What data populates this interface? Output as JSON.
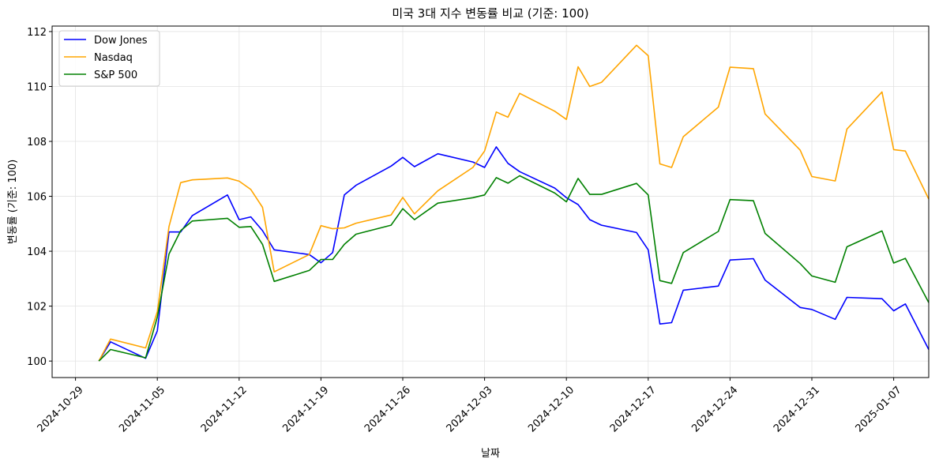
{
  "chart_data": {
    "type": "line",
    "title": "미국 3대 지수 변동률 비교 (기준: 100)",
    "xlabel": "날짜",
    "ylabel": "변동률 (기준: 100)",
    "ylim": [
      99.4,
      112.2
    ],
    "yticks": [
      100,
      102,
      104,
      106,
      108,
      110,
      112
    ],
    "xlim_days": [
      -2.0,
      73.0
    ],
    "xticks": [
      {
        "label": "2024-10-29",
        "day": 0
      },
      {
        "label": "2024-11-05",
        "day": 7
      },
      {
        "label": "2024-11-12",
        "day": 14
      },
      {
        "label": "2024-11-19",
        "day": 21
      },
      {
        "label": "2024-11-26",
        "day": 28
      },
      {
        "label": "2024-12-03",
        "day": 35
      },
      {
        "label": "2024-12-10",
        "day": 42
      },
      {
        "label": "2024-12-17",
        "day": 49
      },
      {
        "label": "2024-12-24",
        "day": 56
      },
      {
        "label": "2024-12-31",
        "day": 63
      },
      {
        "label": "2025-01-07",
        "day": 70
      }
    ],
    "grid": true,
    "legend_position": "top-left",
    "x": [
      "2024-10-31",
      "2024-11-01",
      "2024-11-04",
      "2024-11-05",
      "2024-11-06",
      "2024-11-07",
      "2024-11-08",
      "2024-11-11",
      "2024-11-12",
      "2024-11-13",
      "2024-11-14",
      "2024-11-15",
      "2024-11-18",
      "2024-11-19",
      "2024-11-20",
      "2024-11-21",
      "2024-11-22",
      "2024-11-25",
      "2024-11-26",
      "2024-11-27",
      "2024-11-29",
      "2024-12-02",
      "2024-12-03",
      "2024-12-04",
      "2024-12-05",
      "2024-12-06",
      "2024-12-09",
      "2024-12-10",
      "2024-12-11",
      "2024-12-12",
      "2024-12-13",
      "2024-12-16",
      "2024-12-17",
      "2024-12-18",
      "2024-12-19",
      "2024-12-20",
      "2024-12-23",
      "2024-12-24",
      "2024-12-26",
      "2024-12-27",
      "2024-12-30",
      "2024-12-31",
      "2025-01-02",
      "2025-01-03",
      "2025-01-06",
      "2025-01-07",
      "2025-01-08",
      "2025-01-10"
    ],
    "series": [
      {
        "name": "Dow Jones",
        "color": "#0000ff",
        "values": [
          100.0,
          100.7,
          100.1,
          101.1,
          104.7,
          104.7,
          105.3,
          106.05,
          105.15,
          105.25,
          104.75,
          104.05,
          103.88,
          103.58,
          103.95,
          106.05,
          106.4,
          107.1,
          107.42,
          107.08,
          107.55,
          107.25,
          107.05,
          107.8,
          107.2,
          106.9,
          106.3,
          105.95,
          105.7,
          105.15,
          104.95,
          104.68,
          104.05,
          101.35,
          101.4,
          102.58,
          102.73,
          103.68,
          103.73,
          102.95,
          101.95,
          101.88,
          101.52,
          102.32,
          102.27,
          101.83,
          102.08,
          100.42
        ]
      },
      {
        "name": "Nasdaq",
        "color": "#ffa500",
        "values": [
          100.0,
          100.8,
          100.48,
          101.8,
          104.9,
          106.5,
          106.6,
          106.67,
          106.55,
          106.25,
          105.6,
          103.25,
          103.88,
          104.93,
          104.82,
          104.85,
          105.02,
          105.32,
          105.96,
          105.36,
          106.2,
          107.05,
          107.65,
          109.07,
          108.88,
          109.75,
          109.1,
          108.8,
          110.72,
          110.0,
          110.15,
          111.5,
          111.12,
          107.18,
          107.05,
          108.17,
          109.25,
          110.7,
          110.65,
          109.0,
          107.68,
          106.72,
          106.56,
          108.45,
          109.8,
          107.7,
          107.65,
          105.9
        ]
      },
      {
        "name": "S&P 500",
        "color": "#008000",
        "values": [
          100.0,
          100.42,
          100.12,
          101.6,
          103.9,
          104.75,
          105.1,
          105.2,
          104.87,
          104.9,
          104.25,
          102.9,
          103.3,
          103.7,
          103.7,
          104.25,
          104.62,
          104.95,
          105.55,
          105.15,
          105.75,
          105.95,
          106.05,
          106.68,
          106.48,
          106.75,
          106.12,
          105.8,
          106.65,
          106.07,
          106.07,
          106.47,
          106.05,
          102.93,
          102.83,
          103.95,
          104.72,
          105.88,
          105.84,
          104.65,
          103.55,
          103.1,
          102.87,
          104.16,
          104.74,
          103.57,
          103.74,
          102.13
        ]
      }
    ]
  }
}
